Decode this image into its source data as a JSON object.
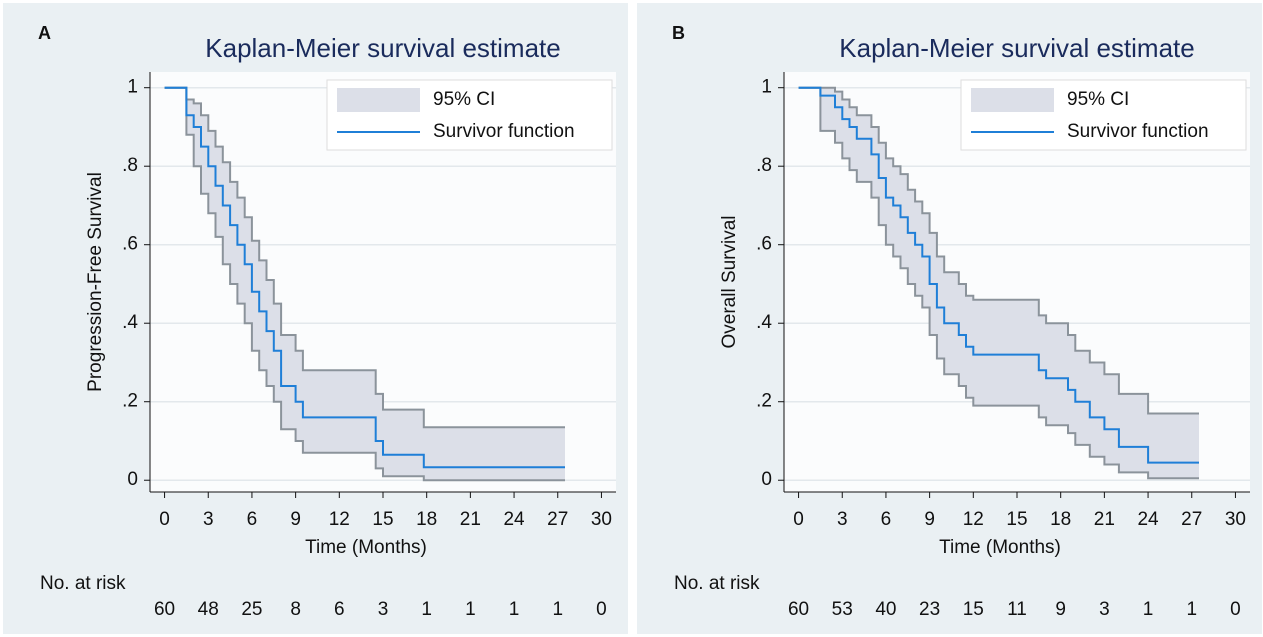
{
  "chart_data": [
    {
      "type": "line",
      "step": true,
      "panel_label": "A",
      "title": "Kaplan-Meier survival estimate",
      "xlabel": "Time (Months)",
      "ylabel": "Progression-Free Survival",
      "xlim": [
        -1,
        31
      ],
      "ylim": [
        -0.03,
        1.04
      ],
      "xticks": [
        0,
        3,
        6,
        9,
        12,
        15,
        18,
        21,
        24,
        27,
        30
      ],
      "yticks": [
        0,
        {
          "value": 0.2,
          "label": ".2"
        },
        {
          "value": 0.4,
          "label": ".4"
        },
        {
          "value": 0.6,
          "label": ".6"
        },
        {
          "value": 0.8,
          "label": ".8"
        },
        1
      ],
      "grid": true,
      "legend": "top-right",
      "x": [
        0,
        1.5,
        2,
        2.5,
        3,
        3.5,
        4,
        4.5,
        5,
        5.5,
        6,
        6.5,
        7,
        7.5,
        8,
        9,
        9.5,
        14.5,
        15,
        17.8,
        27.5
      ],
      "series": [
        {
          "name": "95% CI",
          "color": "#dcdfe8",
          "edge_color": "#8b939b",
          "lower": [
            1,
            0.88,
            0.8,
            0.73,
            0.68,
            0.62,
            0.55,
            0.5,
            0.45,
            0.4,
            0.33,
            0.28,
            0.24,
            0.2,
            0.13,
            0.1,
            0.07,
            0.03,
            0.01,
            0,
            0
          ],
          "upper": [
            1,
            0.97,
            0.96,
            0.93,
            0.89,
            0.85,
            0.81,
            0.76,
            0.72,
            0.67,
            0.61,
            0.56,
            0.51,
            0.45,
            0.37,
            0.33,
            0.28,
            0.22,
            0.18,
            0.135,
            0.135
          ]
        },
        {
          "name": "Survivor function",
          "color": "#1f7fd7",
          "values": [
            1,
            0.93,
            0.9,
            0.85,
            0.8,
            0.75,
            0.7,
            0.65,
            0.6,
            0.55,
            0.48,
            0.43,
            0.38,
            0.33,
            0.24,
            0.2,
            0.16,
            0.1,
            0.065,
            0.033,
            0.033
          ]
        }
      ],
      "risk_table": {
        "label": "No. at risk",
        "values": [
          60,
          48,
          25,
          8,
          6,
          3,
          1,
          1,
          1,
          1,
          0
        ]
      }
    },
    {
      "type": "line",
      "step": true,
      "panel_label": "B",
      "title": "Kaplan-Meier survival estimate",
      "xlabel": "Time (Months)",
      "ylabel": "Overall Survival",
      "xlim": [
        -1,
        31
      ],
      "ylim": [
        -0.03,
        1.04
      ],
      "xticks": [
        0,
        3,
        6,
        9,
        12,
        15,
        18,
        21,
        24,
        27,
        30
      ],
      "yticks": [
        0,
        {
          "value": 0.2,
          "label": ".2"
        },
        {
          "value": 0.4,
          "label": ".4"
        },
        {
          "value": 0.6,
          "label": ".6"
        },
        {
          "value": 0.8,
          "label": ".8"
        },
        1
      ],
      "grid": true,
      "legend": "top-right",
      "x": [
        0,
        1.5,
        2.5,
        3,
        3.5,
        4,
        5,
        5.5,
        6,
        6.5,
        7,
        7.5,
        8,
        8.5,
        9,
        9.5,
        10,
        11,
        11.5,
        12,
        16.5,
        17,
        18.5,
        19,
        20,
        21,
        22,
        24,
        27.5
      ],
      "series": [
        {
          "name": "95% CI",
          "color": "#dcdfe8",
          "edge_color": "#8b939b",
          "lower": [
            1,
            0.89,
            0.86,
            0.82,
            0.79,
            0.76,
            0.72,
            0.65,
            0.6,
            0.57,
            0.54,
            0.5,
            0.47,
            0.44,
            0.37,
            0.31,
            0.27,
            0.24,
            0.21,
            0.19,
            0.16,
            0.14,
            0.12,
            0.09,
            0.06,
            0.04,
            0.02,
            0.005,
            0.005
          ],
          "upper": [
            1,
            1,
            0.99,
            0.97,
            0.95,
            0.93,
            0.9,
            0.86,
            0.82,
            0.8,
            0.78,
            0.74,
            0.71,
            0.68,
            0.63,
            0.57,
            0.53,
            0.5,
            0.47,
            0.46,
            0.42,
            0.4,
            0.37,
            0.33,
            0.3,
            0.27,
            0.22,
            0.17,
            0.17
          ]
        },
        {
          "name": "Survivor function",
          "color": "#1f7fd7",
          "values": [
            1,
            0.98,
            0.95,
            0.92,
            0.9,
            0.87,
            0.83,
            0.77,
            0.72,
            0.7,
            0.67,
            0.63,
            0.6,
            0.57,
            0.5,
            0.44,
            0.4,
            0.37,
            0.34,
            0.32,
            0.28,
            0.26,
            0.23,
            0.2,
            0.16,
            0.13,
            0.085,
            0.045,
            0.045
          ]
        }
      ],
      "risk_table": {
        "label": "No. at risk",
        "values": [
          60,
          53,
          40,
          23,
          15,
          11,
          9,
          3,
          1,
          1,
          0
        ]
      }
    }
  ]
}
